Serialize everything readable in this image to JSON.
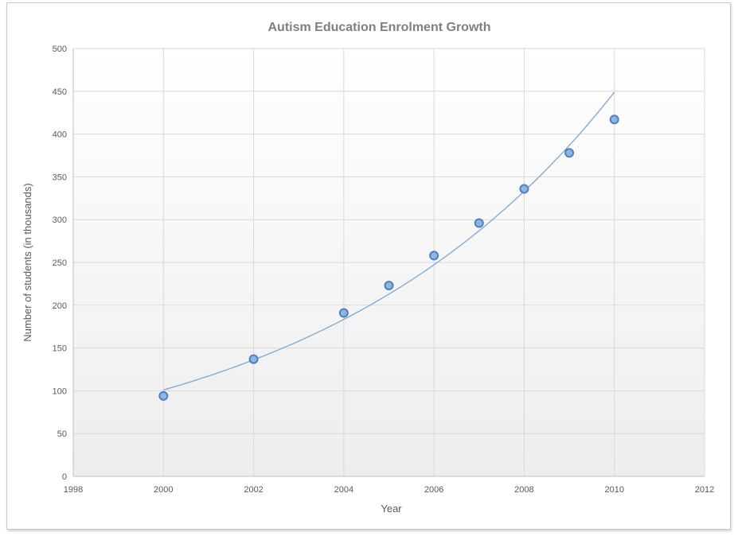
{
  "chart_data": {
    "type": "scatter",
    "title": "Autism Education Enrolment Growth",
    "xlabel": "Year",
    "ylabel": "Number of students (in thousands)",
    "xlim": [
      1998,
      2012
    ],
    "ylim": [
      0,
      500
    ],
    "x_ticks": [
      1998,
      2000,
      2002,
      2004,
      2006,
      2008,
      2010,
      2012
    ],
    "y_ticks": [
      0,
      50,
      100,
      150,
      200,
      250,
      300,
      350,
      400,
      450,
      500
    ],
    "grid": true,
    "legend": "none",
    "series": [
      {
        "x": [
          2000,
          2002,
          2004,
          2005,
          2006,
          2007,
          2008,
          2009,
          2010
        ],
        "y": [
          94,
          137,
          191,
          223,
          258,
          296,
          336,
          378,
          417
        ]
      }
    ],
    "trendline": {
      "kind": "exponential",
      "x_range": [
        2000,
        2010
      ],
      "y_at_start": 101,
      "y_at_end": 449
    },
    "colors": {
      "marker_fill": "#8fb4e3",
      "marker_stroke": "#4f81bd",
      "trendline": "#7aa8d8",
      "grid": "#d9d9d9",
      "axis": "#bfbfbf",
      "background_top": "#ffffff",
      "background_bottom": "#ededed"
    }
  }
}
